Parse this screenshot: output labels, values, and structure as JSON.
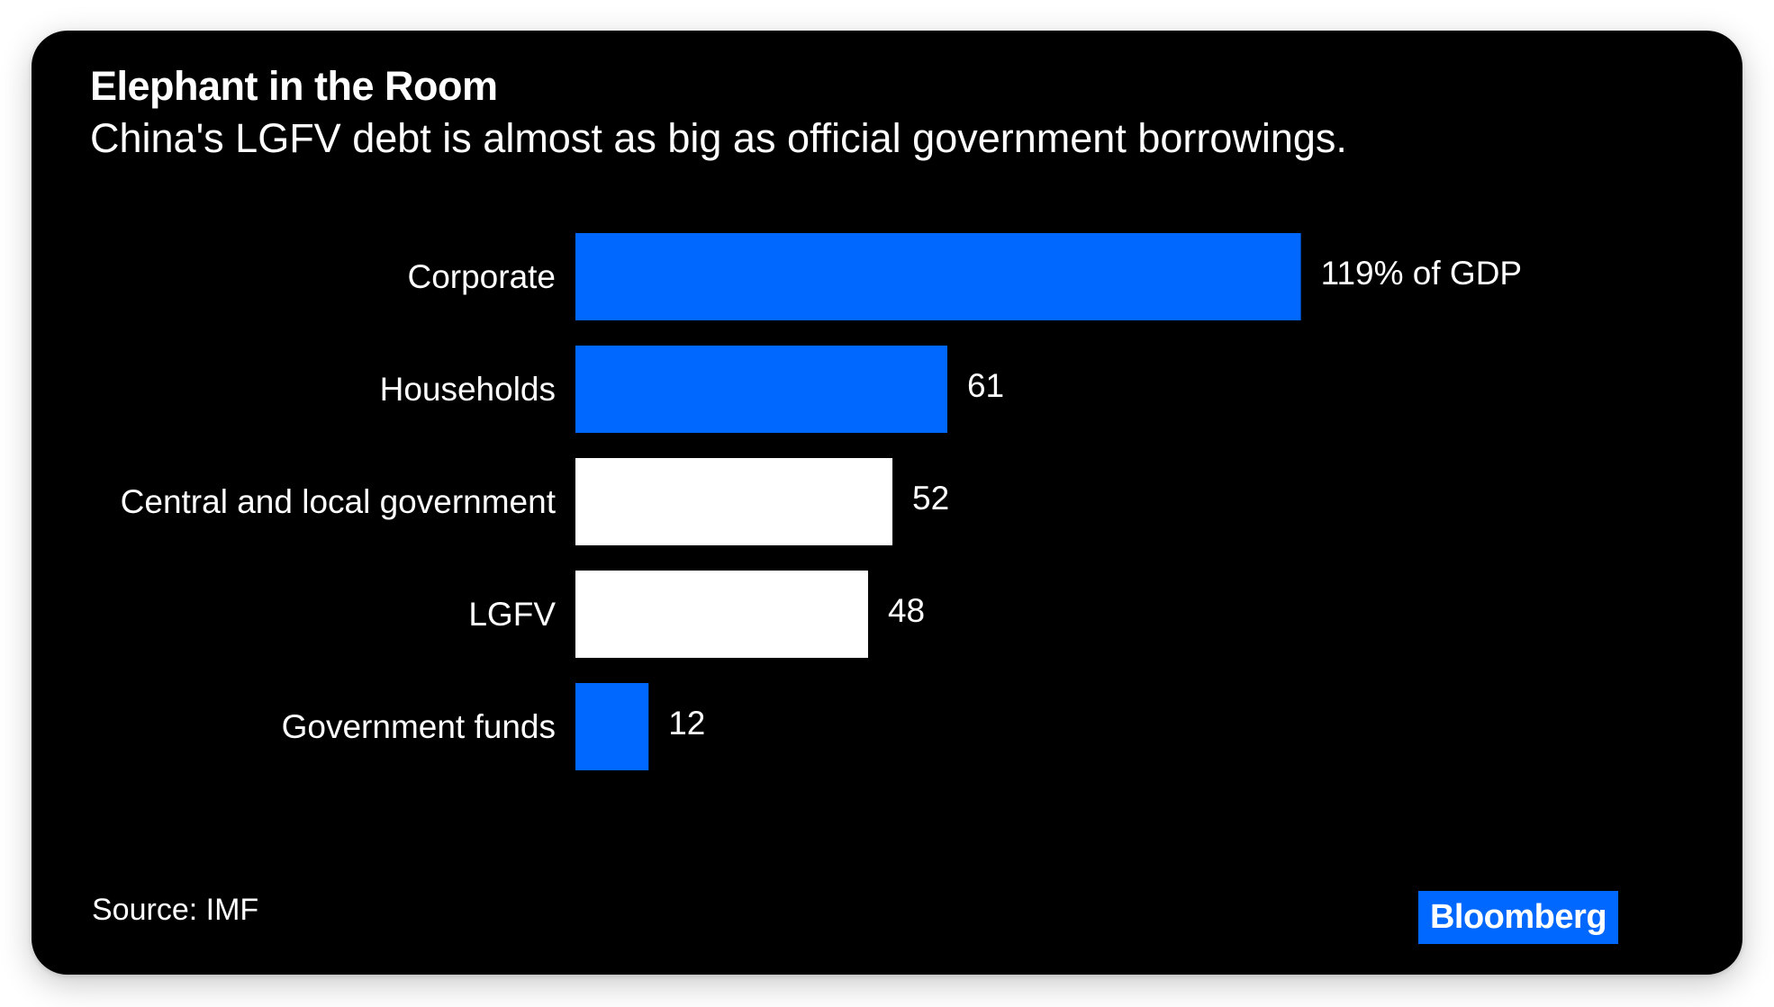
{
  "header": {
    "title": "Elephant in the Room",
    "subtitle": "China's LGFV debt is almost as big as official government borrowings."
  },
  "footer": {
    "source": "Source: IMF",
    "brand": "Bloomberg"
  },
  "colors": {
    "background": "#000000",
    "highlight_bar": "#0068ff",
    "muted_bar": "#ffffff",
    "text": "#ffffff",
    "brand_box": "#0068ff"
  },
  "chart_data": {
    "type": "bar",
    "orientation": "horizontal",
    "title": "Elephant in the Room",
    "subtitle": "China's LGFV debt is almost as big as official government borrowings.",
    "unit": "% of GDP",
    "categories": [
      "Corporate",
      "Households",
      "Central and local government",
      "LGFV",
      "Government funds"
    ],
    "values": [
      119,
      61,
      52,
      48,
      12
    ],
    "value_labels": [
      "119% of GDP",
      "61",
      "52",
      "48",
      "12"
    ],
    "bar_colors": [
      "#0068ff",
      "#0068ff",
      "#ffffff",
      "#ffffff",
      "#0068ff"
    ],
    "xlabel": "",
    "ylabel": "",
    "xlim": [
      0,
      119
    ],
    "grid": false,
    "legend": "none",
    "source": "Source: IMF"
  }
}
